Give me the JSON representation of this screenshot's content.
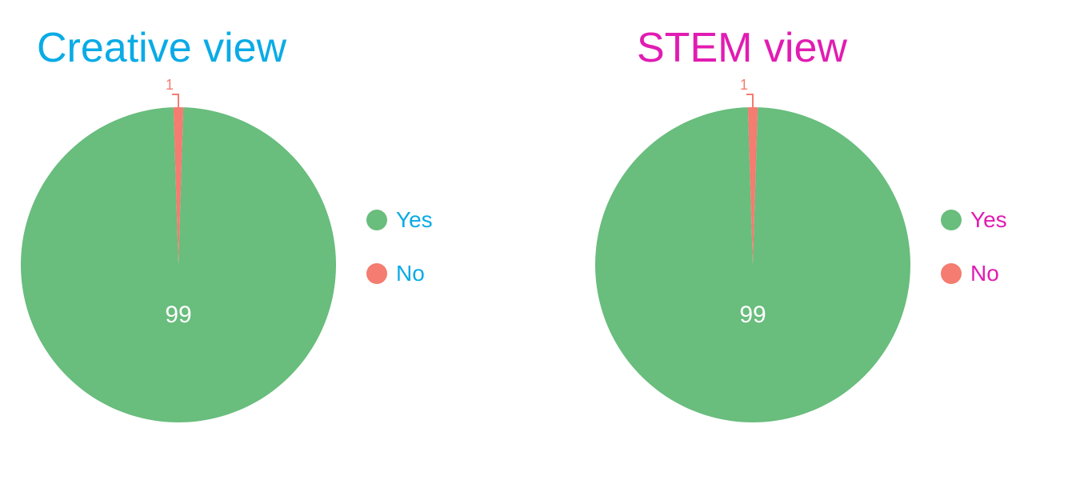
{
  "chart_data": [
    {
      "type": "pie",
      "title": "Creative view",
      "title_color": "#0aabe6",
      "categories": [
        "Yes",
        "No"
      ],
      "values": [
        99,
        1
      ],
      "colors": [
        "#69bd7d",
        "#f47c70"
      ],
      "legend_position": "right"
    },
    {
      "type": "pie",
      "title": "STEM view",
      "title_color": "#e11cb2",
      "categories": [
        "Yes",
        "No"
      ],
      "values": [
        99,
        1
      ],
      "colors": [
        "#69bd7d",
        "#f47c70"
      ],
      "legend_position": "right"
    }
  ]
}
